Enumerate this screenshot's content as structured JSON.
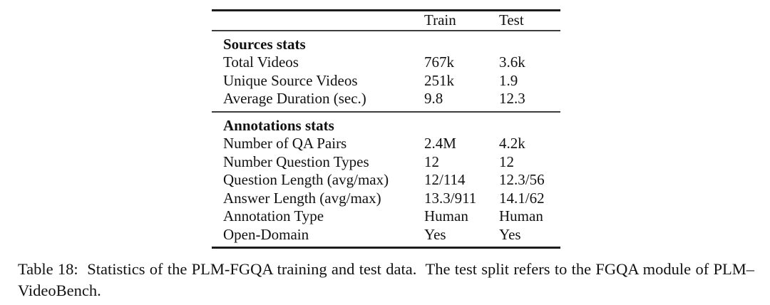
{
  "table": {
    "header": {
      "train": "Train",
      "test": "Test"
    },
    "sections": [
      {
        "title": "Sources stats",
        "rows": [
          {
            "label": "Total Videos",
            "train": "767k",
            "test": "3.6k"
          },
          {
            "label": "Unique Source Videos",
            "train": "251k",
            "test": "1.9"
          },
          {
            "label": "Average Duration (sec.)",
            "train": "9.8",
            "test": "12.3"
          }
        ]
      },
      {
        "title": "Annotations stats",
        "rows": [
          {
            "label": "Number of QA Pairs",
            "train": "2.4M",
            "test": "4.2k"
          },
          {
            "label": "Number Question Types",
            "train": "12",
            "test": "12"
          },
          {
            "label": "Question Length (avg/max)",
            "train": "12/114",
            "test": "12.3/56"
          },
          {
            "label": "Answer Length (avg/max)",
            "train": "13.3/911",
            "test": "14.1/62"
          },
          {
            "label": "Annotation Type",
            "train": "Human",
            "test": "Human"
          },
          {
            "label": "Open-Domain",
            "train": "Yes",
            "test": "Yes"
          }
        ]
      }
    ]
  },
  "caption": "Table 18:  Statistics of the PLM-FGQA training and test data.  The test split refers to the FGQA module of PLM–VideoBench.",
  "colors": {
    "background": "#ffffff",
    "text": "#111111",
    "rule_heavy": "#1c1c1c",
    "rule_light": "#3d3d3d"
  }
}
